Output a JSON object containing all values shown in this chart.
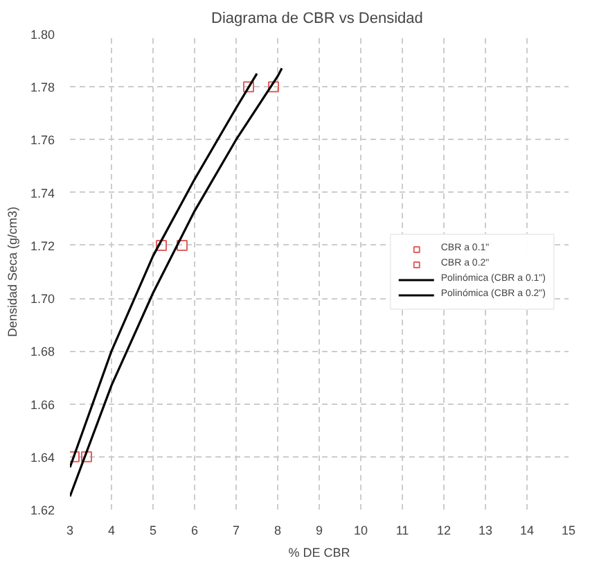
{
  "chart_data": {
    "type": "scatter",
    "title": "Diagrama de CBR vs  Densidad",
    "xlabel": "% DE CBR",
    "ylabel": "Densidad Seca (g/cm3)",
    "xlim": [
      3,
      15
    ],
    "xticks": [
      3,
      4,
      5,
      6,
      7,
      8,
      9,
      10,
      11,
      12,
      13,
      14,
      15
    ],
    "ylim": [
      1.62,
      1.8
    ],
    "yticks": [
      {
        "value": 1.62,
        "label": "1.62"
      },
      {
        "value": 1.64,
        "label": "1.64"
      },
      {
        "value": 1.66,
        "label": "1.66"
      },
      {
        "value": 1.68,
        "label": "1.68"
      },
      {
        "value": 1.7,
        "label": "1.70"
      },
      {
        "value": 1.72,
        "label": "1.72"
      },
      {
        "value": 1.74,
        "label": "1.74"
      },
      {
        "value": 1.76,
        "label": "1.76"
      },
      {
        "value": 1.78,
        "label": "1.78"
      },
      {
        "value": 1.8,
        "label": "1.80"
      }
    ],
    "grid": true,
    "legend": "right",
    "series": [
      {
        "name": "CBR a 0.1\"",
        "marker": "square",
        "color": "#e06060",
        "x": [
          3.1,
          5.2,
          7.3
        ],
        "values": [
          1.64,
          1.72,
          1.78
        ]
      },
      {
        "name": "CBR a 0.2\"",
        "marker": "square",
        "color": "#e06060",
        "x": [
          3.4,
          5.7,
          7.9
        ],
        "values": [
          1.64,
          1.72,
          1.78
        ]
      },
      {
        "name": "Polinómica (CBR a 0.1\")",
        "type": "line",
        "color": "#000000",
        "x": [
          3.0,
          4.0,
          5.0,
          6.0,
          7.0,
          7.5
        ],
        "values": [
          1.636,
          1.68,
          1.716,
          1.745,
          1.772,
          1.785
        ]
      },
      {
        "name": "Polinómica (CBR a 0.2\")",
        "type": "line",
        "color": "#000000",
        "x": [
          3.0,
          4.0,
          5.0,
          6.0,
          7.0,
          8.0,
          8.1
        ],
        "values": [
          1.625,
          1.667,
          1.702,
          1.733,
          1.76,
          1.784,
          1.787
        ]
      }
    ]
  }
}
